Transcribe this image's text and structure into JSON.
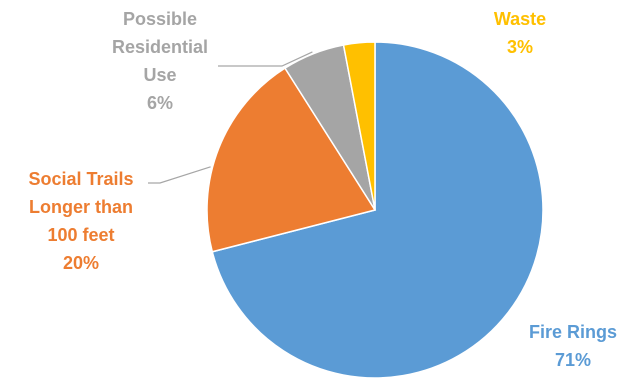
{
  "chart_data": {
    "type": "pie",
    "title": "",
    "slices": [
      {
        "name": "Fire Rings",
        "value": 71,
        "label_lines": [
          "Fire Rings",
          "71%"
        ],
        "color": "#5B9BD5"
      },
      {
        "name": "Social Trails Longer than 100 feet",
        "value": 20,
        "label_lines": [
          "Social Trails",
          "Longer than",
          "100 feet",
          "20%"
        ],
        "color": "#ED7D31"
      },
      {
        "name": "Possible Residential Use",
        "value": 6,
        "label_lines": [
          "Possible",
          "Residential",
          "Use",
          "6%"
        ],
        "color": "#A5A5A5"
      },
      {
        "name": "Waste",
        "value": 3,
        "label_lines": [
          "Waste",
          "3%"
        ],
        "color": "#FFC000"
      }
    ],
    "start_angle_deg": 0,
    "direction": "clockwise",
    "legend": "none",
    "leader_line_color": "#A6A6A6"
  }
}
